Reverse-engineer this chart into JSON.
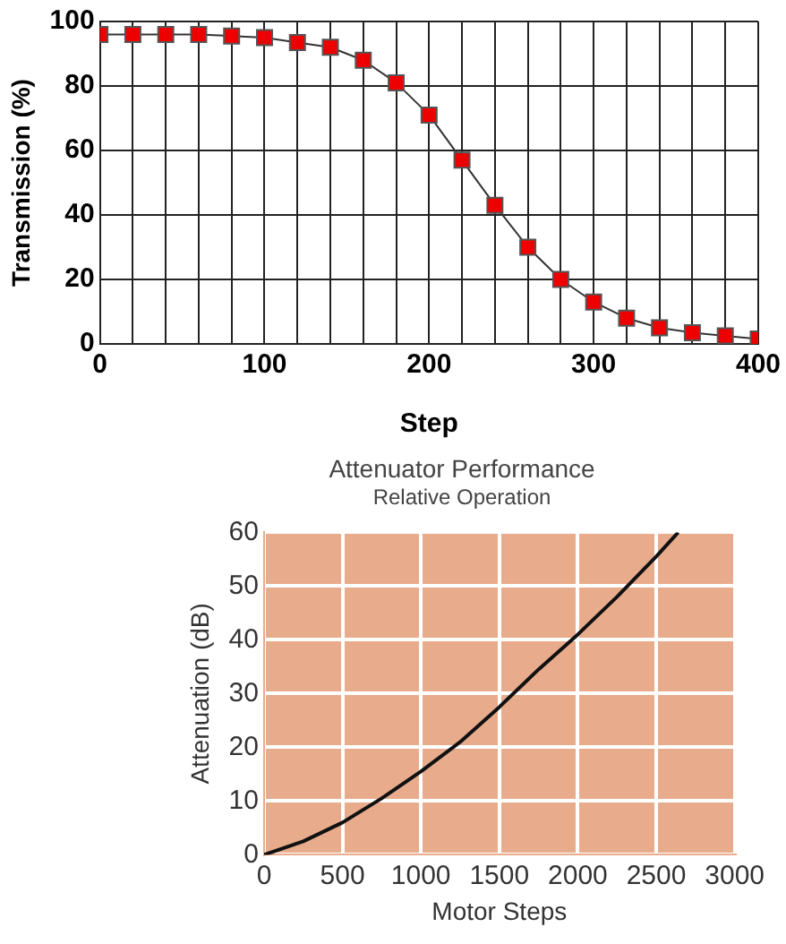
{
  "chart_data": [
    {
      "type": "line",
      "xlabel": "Step",
      "ylabel": "Transmission (%)",
      "x": [
        0,
        20,
        40,
        60,
        80,
        100,
        120,
        140,
        160,
        180,
        200,
        220,
        240,
        260,
        280,
        300,
        320,
        340,
        360,
        380,
        400
      ],
      "series": [
        {
          "color": "#ee0000",
          "values": [
            96,
            96,
            96,
            96,
            95.5,
            95,
            93.5,
            92,
            88,
            81,
            71,
            57,
            43,
            30,
            20,
            13,
            8,
            5,
            3.5,
            2.5,
            1.5
          ]
        }
      ],
      "xlim": [
        0,
        400
      ],
      "xticks": [
        0,
        {
          "value": 20,
          "label": null
        },
        {
          "value": 40,
          "label": null
        },
        {
          "value": 60,
          "label": null
        },
        {
          "value": 80,
          "label": null
        },
        100,
        {
          "value": 120,
          "label": null
        },
        {
          "value": 140,
          "label": null
        },
        {
          "value": 160,
          "label": null
        },
        {
          "value": 180,
          "label": null
        },
        200,
        {
          "value": 220,
          "label": null
        },
        {
          "value": 240,
          "label": null
        },
        {
          "value": 260,
          "label": null
        },
        {
          "value": 280,
          "label": null
        },
        300,
        {
          "value": 320,
          "label": null
        },
        {
          "value": 340,
          "label": null
        },
        {
          "value": 360,
          "label": null
        },
        {
          "value": 380,
          "label": null
        },
        400
      ],
      "ylim": [
        0,
        100
      ],
      "yticks": [
        0,
        20,
        40,
        60,
        80,
        100
      ],
      "grid": true,
      "legend": false,
      "marker": "square",
      "line_style": "solid"
    },
    {
      "type": "line",
      "title": "Attenuator Performance",
      "subtitle": "Relative Operation",
      "xlabel": "Motor Steps",
      "ylabel": "Attenuation (dB)",
      "x": [
        0,
        250,
        500,
        750,
        1000,
        1250,
        1500,
        1750,
        2000,
        2250,
        2500,
        2640
      ],
      "series": [
        {
          "color": "#111111",
          "values": [
            0,
            2.5,
            6,
            10.5,
            15.5,
            21,
            27.5,
            34.5,
            41,
            48,
            55.5,
            60
          ]
        }
      ],
      "xlim": [
        0,
        3000
      ],
      "xticks": [
        0,
        500,
        1000,
        1500,
        2000,
        2500,
        3000
      ],
      "ylim": [
        0,
        60
      ],
      "yticks": [
        0,
        10,
        20,
        30,
        40,
        50,
        60
      ],
      "grid": true,
      "legend": false,
      "marker": "none",
      "line_style": "solid"
    }
  ]
}
